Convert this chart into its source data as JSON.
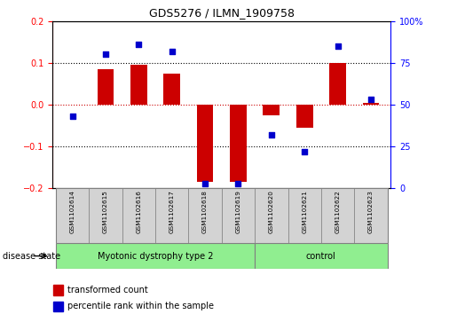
{
  "title": "GDS5276 / ILMN_1909758",
  "samples": [
    "GSM1102614",
    "GSM1102615",
    "GSM1102616",
    "GSM1102617",
    "GSM1102618",
    "GSM1102619",
    "GSM1102620",
    "GSM1102621",
    "GSM1102622",
    "GSM1102623"
  ],
  "transformed_count": [
    0.0,
    0.085,
    0.095,
    0.075,
    -0.185,
    -0.185,
    -0.025,
    -0.055,
    0.1,
    0.005
  ],
  "percentile_rank": [
    43,
    80,
    86,
    82,
    3,
    3,
    32,
    22,
    85,
    53
  ],
  "group1_count": 6,
  "group2_count": 4,
  "group1_label": "Myotonic dystrophy type 2",
  "group2_label": "control",
  "group_color": "#90EE90",
  "ylim_left": [
    -0.2,
    0.2
  ],
  "ylim_right": [
    0,
    100
  ],
  "yticks_left": [
    -0.2,
    -0.1,
    0.0,
    0.1,
    0.2
  ],
  "yticks_right": [
    0,
    25,
    50,
    75,
    100
  ],
  "bar_color": "#CC0000",
  "dot_color": "#0000CC",
  "legend_labels": [
    "transformed count",
    "percentile rank within the sample"
  ],
  "hline_color": "#CC0000",
  "dotted_hline_color": "black",
  "bg_color": "white",
  "disease_state_label": "disease state",
  "label_box_color": "#d3d3d3",
  "bar_width": 0.5
}
